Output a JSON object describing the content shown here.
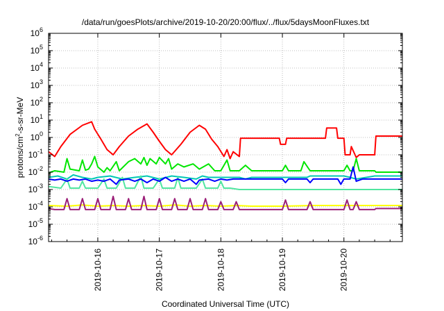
{
  "chart_data": {
    "type": "line",
    "title": "/data/run/goesPlots/archive/2019-10-20/20:00/flux/../flux/5daysMoonFluxes.txt",
    "xlabel": "Coordinated Universal Time (UTC)",
    "ylabel": {
      "base": "protons/cm",
      "sup": "2",
      "rest": "-s-sr-MeV"
    },
    "yscale": "log",
    "ylim_exponent": [
      -6,
      6
    ],
    "y_ticks": [
      {
        "base": "10",
        "exp": "6"
      },
      {
        "base": "10",
        "exp": "5"
      },
      {
        "base": "10",
        "exp": "4"
      },
      {
        "base": "10",
        "exp": "3"
      },
      {
        "base": "10",
        "exp": "2"
      },
      {
        "base": "10",
        "exp": "1"
      },
      {
        "base": "10",
        "exp": "0"
      },
      {
        "base": "10",
        "exp": "-1"
      },
      {
        "base": "10",
        "exp": "-2"
      },
      {
        "base": "10",
        "exp": "-3"
      },
      {
        "base": "10",
        "exp": "-4"
      },
      {
        "base": "10",
        "exp": "-5"
      },
      {
        "base": "10",
        "exp": "-6"
      }
    ],
    "xlim_days": [
      15.2,
      20.95
    ],
    "x_ticks": [
      {
        "day": 16,
        "label": "2019-10-16"
      },
      {
        "day": 17,
        "label": "2019-10-17"
      },
      {
        "day": 18,
        "label": "2019-10-18"
      },
      {
        "day": 19,
        "label": "2019-10-19"
      },
      {
        "day": 20,
        "label": "2019-10-20"
      }
    ],
    "grid": true,
    "series": [
      {
        "color": "#ff0000",
        "points": [
          [
            15.2,
            0.15
          ],
          [
            15.3,
            0.08
          ],
          [
            15.4,
            0.3
          ],
          [
            15.55,
            1.5
          ],
          [
            15.75,
            5
          ],
          [
            15.9,
            8
          ],
          [
            15.95,
            3
          ],
          [
            16.05,
            0.8
          ],
          [
            16.15,
            0.2
          ],
          [
            16.25,
            0.1
          ],
          [
            16.35,
            0.3
          ],
          [
            16.5,
            1.2
          ],
          [
            16.65,
            3
          ],
          [
            16.8,
            6
          ],
          [
            16.9,
            2
          ],
          [
            17.0,
            0.6
          ],
          [
            17.1,
            0.2
          ],
          [
            17.2,
            0.1
          ],
          [
            17.35,
            0.4
          ],
          [
            17.5,
            2
          ],
          [
            17.65,
            5
          ],
          [
            17.75,
            3
          ],
          [
            17.85,
            0.8
          ],
          [
            17.95,
            0.3
          ],
          [
            18.05,
            0.08
          ],
          [
            18.1,
            0.2
          ],
          [
            18.15,
            0.06
          ],
          [
            18.2,
            0.15
          ],
          [
            18.3,
            0.08
          ],
          [
            18.32,
            0.9
          ],
          [
            18.95,
            0.9
          ],
          [
            18.97,
            0.4
          ],
          [
            19.05,
            0.4
          ],
          [
            19.07,
            0.9
          ],
          [
            19.7,
            0.9
          ],
          [
            19.72,
            3.5
          ],
          [
            19.88,
            3.5
          ],
          [
            19.9,
            0.9
          ],
          [
            20.0,
            0.9
          ],
          [
            20.02,
            0.1
          ],
          [
            20.1,
            0.1
          ],
          [
            20.12,
            0.3
          ],
          [
            20.2,
            0.07
          ],
          [
            20.25,
            0.1
          ],
          [
            20.5,
            0.1
          ],
          [
            20.52,
            1.2
          ],
          [
            20.95,
            1.2
          ]
        ]
      },
      {
        "color": "#00e600",
        "points": [
          [
            15.2,
            0.009
          ],
          [
            15.3,
            0.012
          ],
          [
            15.45,
            0.01
          ],
          [
            15.5,
            0.06
          ],
          [
            15.55,
            0.015
          ],
          [
            15.7,
            0.012
          ],
          [
            15.75,
            0.05
          ],
          [
            15.8,
            0.013
          ],
          [
            15.85,
            0.015
          ],
          [
            15.9,
            0.03
          ],
          [
            15.95,
            0.08
          ],
          [
            16.0,
            0.02
          ],
          [
            16.1,
            0.01
          ],
          [
            16.15,
            0.018
          ],
          [
            16.2,
            0.012
          ],
          [
            16.3,
            0.04
          ],
          [
            16.35,
            0.012
          ],
          [
            16.5,
            0.04
          ],
          [
            16.6,
            0.06
          ],
          [
            16.7,
            0.03
          ],
          [
            16.75,
            0.07
          ],
          [
            16.8,
            0.025
          ],
          [
            16.85,
            0.06
          ],
          [
            16.95,
            0.03
          ],
          [
            17.0,
            0.07
          ],
          [
            17.1,
            0.03
          ],
          [
            17.15,
            0.06
          ],
          [
            17.2,
            0.015
          ],
          [
            17.3,
            0.03
          ],
          [
            17.4,
            0.02
          ],
          [
            17.55,
            0.03
          ],
          [
            17.65,
            0.015
          ],
          [
            17.8,
            0.03
          ],
          [
            17.9,
            0.012
          ],
          [
            18.0,
            0.012
          ],
          [
            18.1,
            0.05
          ],
          [
            18.15,
            0.012
          ],
          [
            18.3,
            0.012
          ],
          [
            18.4,
            0.025
          ],
          [
            18.5,
            0.012
          ],
          [
            19.0,
            0.012
          ],
          [
            19.05,
            0.025
          ],
          [
            19.1,
            0.012
          ],
          [
            19.3,
            0.012
          ],
          [
            19.35,
            0.04
          ],
          [
            19.45,
            0.012
          ],
          [
            20.0,
            0.012
          ],
          [
            20.05,
            0.025
          ],
          [
            20.1,
            0.012
          ],
          [
            20.15,
            0.012
          ],
          [
            20.2,
            0.06
          ],
          [
            20.25,
            0.012
          ],
          [
            20.5,
            0.012
          ],
          [
            20.52,
            0.01
          ],
          [
            20.95,
            0.01
          ]
        ]
      },
      {
        "color": "#00c8b4",
        "points": [
          [
            15.2,
            0.005
          ],
          [
            15.35,
            0.006
          ],
          [
            15.5,
            0.004
          ],
          [
            15.6,
            0.007
          ],
          [
            15.75,
            0.005
          ],
          [
            15.9,
            0.004
          ],
          [
            16.0,
            0.005
          ],
          [
            16.2,
            0.006
          ],
          [
            16.4,
            0.004
          ],
          [
            16.6,
            0.005
          ],
          [
            16.8,
            0.006
          ],
          [
            17.0,
            0.004
          ],
          [
            17.2,
            0.006
          ],
          [
            17.4,
            0.005
          ],
          [
            17.6,
            0.004
          ],
          [
            17.7,
            0.006
          ],
          [
            17.8,
            0.005
          ],
          [
            18.0,
            0.005
          ],
          [
            18.3,
            0.005
          ],
          [
            18.4,
            0.004
          ],
          [
            18.5,
            0.005
          ],
          [
            19.0,
            0.005
          ],
          [
            19.4,
            0.005
          ],
          [
            19.45,
            0.006
          ],
          [
            20.0,
            0.006
          ],
          [
            20.1,
            0.005
          ],
          [
            20.2,
            0.004
          ],
          [
            20.5,
            0.006
          ],
          [
            20.95,
            0.006
          ]
        ]
      },
      {
        "color": "#50e6a0",
        "points": [
          [
            15.2,
            0.0015
          ],
          [
            15.4,
            0.0012
          ],
          [
            15.5,
            0.004
          ],
          [
            15.55,
            0.0012
          ],
          [
            15.7,
            0.0012
          ],
          [
            15.75,
            0.003
          ],
          [
            15.8,
            0.0012
          ],
          [
            16.0,
            0.0012
          ],
          [
            16.1,
            0.004
          ],
          [
            16.15,
            0.0012
          ],
          [
            16.3,
            0.0012
          ],
          [
            16.4,
            0.005
          ],
          [
            16.45,
            0.0012
          ],
          [
            16.6,
            0.0012
          ],
          [
            16.7,
            0.006
          ],
          [
            16.75,
            0.0012
          ],
          [
            16.9,
            0.0012
          ],
          [
            17.0,
            0.004
          ],
          [
            17.05,
            0.0012
          ],
          [
            17.25,
            0.0012
          ],
          [
            17.3,
            0.005
          ],
          [
            17.35,
            0.0012
          ],
          [
            17.6,
            0.0012
          ],
          [
            17.7,
            0.004
          ],
          [
            17.75,
            0.0012
          ],
          [
            17.95,
            0.0012
          ],
          [
            18.0,
            0.003
          ],
          [
            18.05,
            0.0012
          ],
          [
            18.15,
            0.0012
          ],
          [
            18.3,
            0.001
          ],
          [
            19.0,
            0.001
          ],
          [
            19.1,
            0.001
          ],
          [
            20.0,
            0.001
          ],
          [
            20.95,
            0.001
          ]
        ]
      },
      {
        "color": "#0000ff",
        "points": [
          [
            15.2,
            0.004
          ],
          [
            15.3,
            0.0035
          ],
          [
            15.4,
            0.004
          ],
          [
            15.5,
            0.003
          ],
          [
            15.6,
            0.004
          ],
          [
            15.7,
            0.0035
          ],
          [
            15.8,
            0.004
          ],
          [
            15.9,
            0.003
          ],
          [
            16.0,
            0.0035
          ],
          [
            16.1,
            0.003
          ],
          [
            16.2,
            0.004
          ],
          [
            16.3,
            0.002
          ],
          [
            16.35,
            0.0035
          ],
          [
            16.5,
            0.004
          ],
          [
            16.6,
            0.003
          ],
          [
            16.7,
            0.004
          ],
          [
            16.8,
            0.0025
          ],
          [
            16.9,
            0.004
          ],
          [
            17.0,
            0.003
          ],
          [
            17.1,
            0.005
          ],
          [
            17.2,
            0.003
          ],
          [
            17.3,
            0.004
          ],
          [
            17.4,
            0.003
          ],
          [
            17.5,
            0.004
          ],
          [
            17.6,
            0.002
          ],
          [
            17.65,
            0.0035
          ],
          [
            17.8,
            0.004
          ],
          [
            17.9,
            0.003
          ],
          [
            18.0,
            0.004
          ],
          [
            18.1,
            0.0035
          ],
          [
            18.2,
            0.004
          ],
          [
            19.0,
            0.004
          ],
          [
            19.05,
            0.0025
          ],
          [
            19.1,
            0.004
          ],
          [
            19.4,
            0.004
          ],
          [
            19.45,
            0.0025
          ],
          [
            19.5,
            0.004
          ],
          [
            19.9,
            0.004
          ],
          [
            19.95,
            0.002
          ],
          [
            20.0,
            0.004
          ],
          [
            20.1,
            0.004
          ],
          [
            20.15,
            0.02
          ],
          [
            20.2,
            0.003
          ],
          [
            20.3,
            0.004
          ],
          [
            20.95,
            0.004
          ]
        ]
      },
      {
        "color": "#ffff00",
        "points": [
          [
            15.2,
            0.00012
          ],
          [
            15.5,
            0.00011
          ],
          [
            15.75,
            0.00013
          ],
          [
            16.0,
            0.00011
          ],
          [
            16.25,
            0.00012
          ],
          [
            16.5,
            0.00011
          ],
          [
            16.75,
            0.00012
          ],
          [
            17.0,
            0.00011
          ],
          [
            17.25,
            0.00013
          ],
          [
            17.5,
            0.00011
          ],
          [
            17.75,
            0.00012
          ],
          [
            18.0,
            0.00011
          ],
          [
            18.25,
            0.00012
          ],
          [
            18.5,
            0.00011
          ],
          [
            19.0,
            0.00011
          ],
          [
            19.5,
            0.00012
          ],
          [
            20.0,
            0.00012
          ],
          [
            20.5,
            0.00012
          ],
          [
            20.95,
            0.00012
          ]
        ]
      },
      {
        "color": "#9b1e78",
        "points": [
          [
            15.2,
            8e-05
          ],
          [
            15.3,
            7e-05
          ],
          [
            15.45,
            7e-05
          ],
          [
            15.5,
            0.0003
          ],
          [
            15.55,
            7e-05
          ],
          [
            15.7,
            7e-05
          ],
          [
            15.75,
            0.0003
          ],
          [
            15.8,
            7e-05
          ],
          [
            15.95,
            7e-05
          ],
          [
            16.0,
            0.0003
          ],
          [
            16.05,
            7e-05
          ],
          [
            16.2,
            7e-05
          ],
          [
            16.25,
            0.0004
          ],
          [
            16.3,
            7e-05
          ],
          [
            16.45,
            7e-05
          ],
          [
            16.5,
            0.0003
          ],
          [
            16.55,
            7e-05
          ],
          [
            16.7,
            7e-05
          ],
          [
            16.75,
            0.0004
          ],
          [
            16.8,
            7e-05
          ],
          [
            16.95,
            7e-05
          ],
          [
            17.0,
            0.0003
          ],
          [
            17.05,
            7e-05
          ],
          [
            17.2,
            7e-05
          ],
          [
            17.25,
            0.0003
          ],
          [
            17.3,
            7e-05
          ],
          [
            17.45,
            7e-05
          ],
          [
            17.5,
            0.0003
          ],
          [
            17.55,
            7e-05
          ],
          [
            17.7,
            7e-05
          ],
          [
            17.75,
            0.0003
          ],
          [
            17.8,
            7e-05
          ],
          [
            17.95,
            7e-05
          ],
          [
            18.0,
            0.0002
          ],
          [
            18.05,
            7e-05
          ],
          [
            18.2,
            7e-05
          ],
          [
            18.25,
            0.0002
          ],
          [
            18.3,
            7e-05
          ],
          [
            19.0,
            7e-05
          ],
          [
            19.05,
            0.00025
          ],
          [
            19.1,
            7e-05
          ],
          [
            19.4,
            7e-05
          ],
          [
            19.45,
            0.0002
          ],
          [
            19.5,
            7e-05
          ],
          [
            20.0,
            7e-05
          ],
          [
            20.05,
            0.00025
          ],
          [
            20.1,
            7e-05
          ],
          [
            20.15,
            7e-05
          ],
          [
            20.2,
            0.0002
          ],
          [
            20.25,
            7e-05
          ],
          [
            20.5,
            7e-05
          ],
          [
            20.52,
            8e-05
          ],
          [
            20.95,
            8e-05
          ]
        ]
      }
    ]
  }
}
